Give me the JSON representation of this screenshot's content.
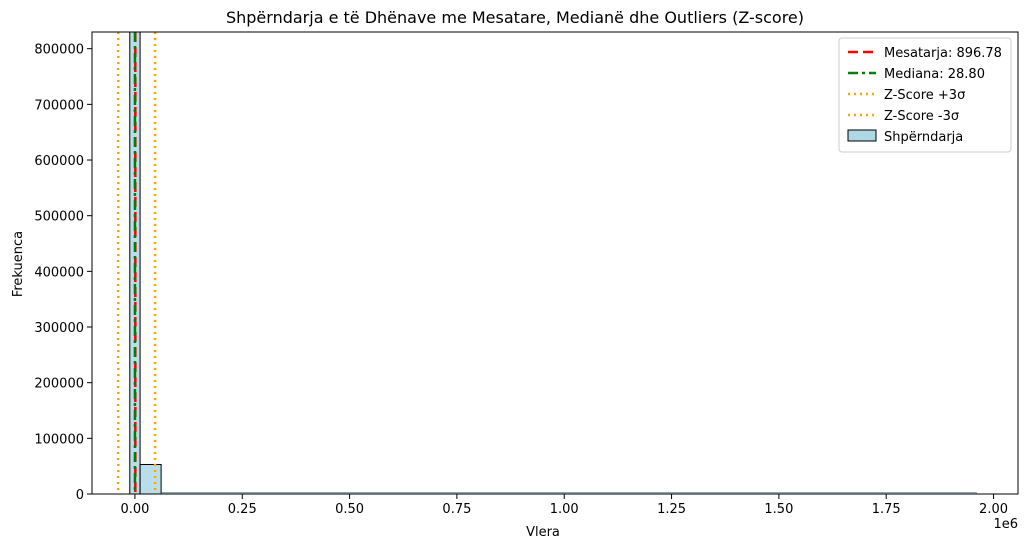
{
  "chart_data": {
    "type": "bar",
    "title": "Shpërndarja e të Dhënave me Mesatare, Medianë dhe Outliers (Z-score)",
    "xlabel": "Vlera",
    "ylabel": "Frekuenca",
    "x_offset_label": "1e6",
    "xlim": [
      -100000,
      2057000
    ],
    "ylim": [
      0,
      830000
    ],
    "x_ticks": [
      0,
      250000,
      500000,
      750000,
      1000000,
      1250000,
      1500000,
      1750000,
      2000000
    ],
    "x_tick_labels": [
      "0.00",
      "0.25",
      "0.50",
      "0.75",
      "1.00",
      "1.25",
      "1.50",
      "1.75",
      "2.00"
    ],
    "y_ticks": [
      0,
      100000,
      200000,
      300000,
      400000,
      500000,
      600000,
      700000,
      800000
    ],
    "y_tick_labels": [
      "0",
      "100000",
      "200000",
      "300000",
      "400000",
      "500000",
      "600000",
      "700000",
      "800000"
    ],
    "histogram": {
      "name": "Shpërndarja",
      "bin_edges": [
        -12000,
        12000,
        61000
      ],
      "counts": [
        830000,
        53000
      ],
      "color": "#add8e6",
      "edge_color": "#000000"
    },
    "baseline_strip": {
      "x_start": 61000,
      "x_end": 1960000
    },
    "vlines": [
      {
        "name": "Mesatarja: 896.78",
        "x": 896.78,
        "color": "#ff0000",
        "style": "dashed"
      },
      {
        "name": "Mediana: 28.80",
        "x": 28.8,
        "color": "#008000",
        "style": "dashdot"
      },
      {
        "name": "Z-Score +3σ",
        "x": 47000,
        "color": "#ffa500",
        "style": "dotted"
      },
      {
        "name": "Z-Score -3σ",
        "x": -39000,
        "color": "#ffa500",
        "style": "dotted"
      }
    ],
    "legend": {
      "position": "top-right",
      "entries": [
        "Mesatarja: 896.78",
        "Mediana: 28.80",
        "Z-Score +3σ",
        "Z-Score -3σ",
        "Shpërndarja"
      ]
    },
    "grid": false
  }
}
